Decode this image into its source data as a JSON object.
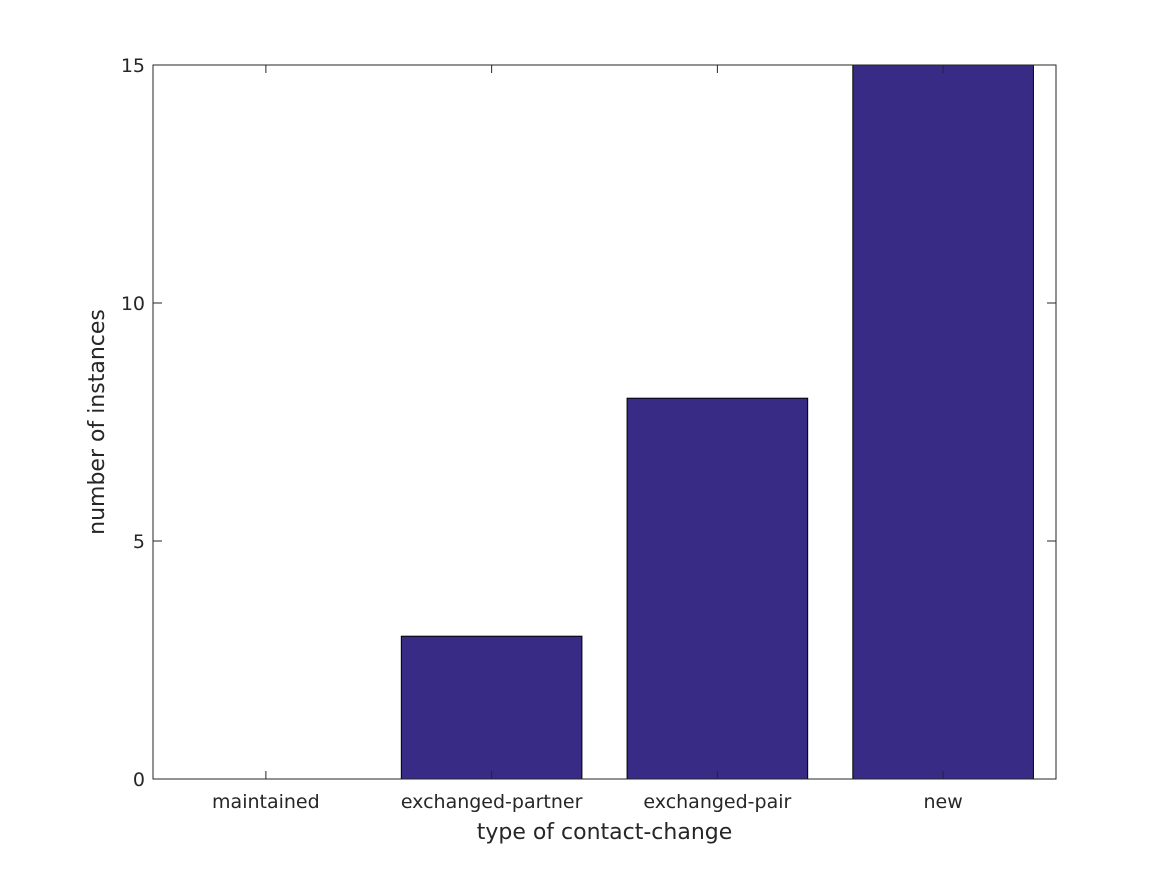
{
  "colors": {
    "bar_fill": "#372B86",
    "bar_stroke": "#000000",
    "axis": "#262626",
    "background": "#FFFFFF"
  },
  "chart_data": {
    "type": "bar",
    "title": "",
    "xlabel": "type of contact-change",
    "ylabel": "number of instances",
    "categories": [
      "maintained",
      "exchanged-partner",
      "exchanged-pair",
      "new"
    ],
    "values": [
      0,
      3,
      8,
      15
    ],
    "ylim": [
      0,
      15
    ],
    "yticks": [
      0,
      5,
      10,
      15
    ],
    "grid": false,
    "legend": "none"
  }
}
